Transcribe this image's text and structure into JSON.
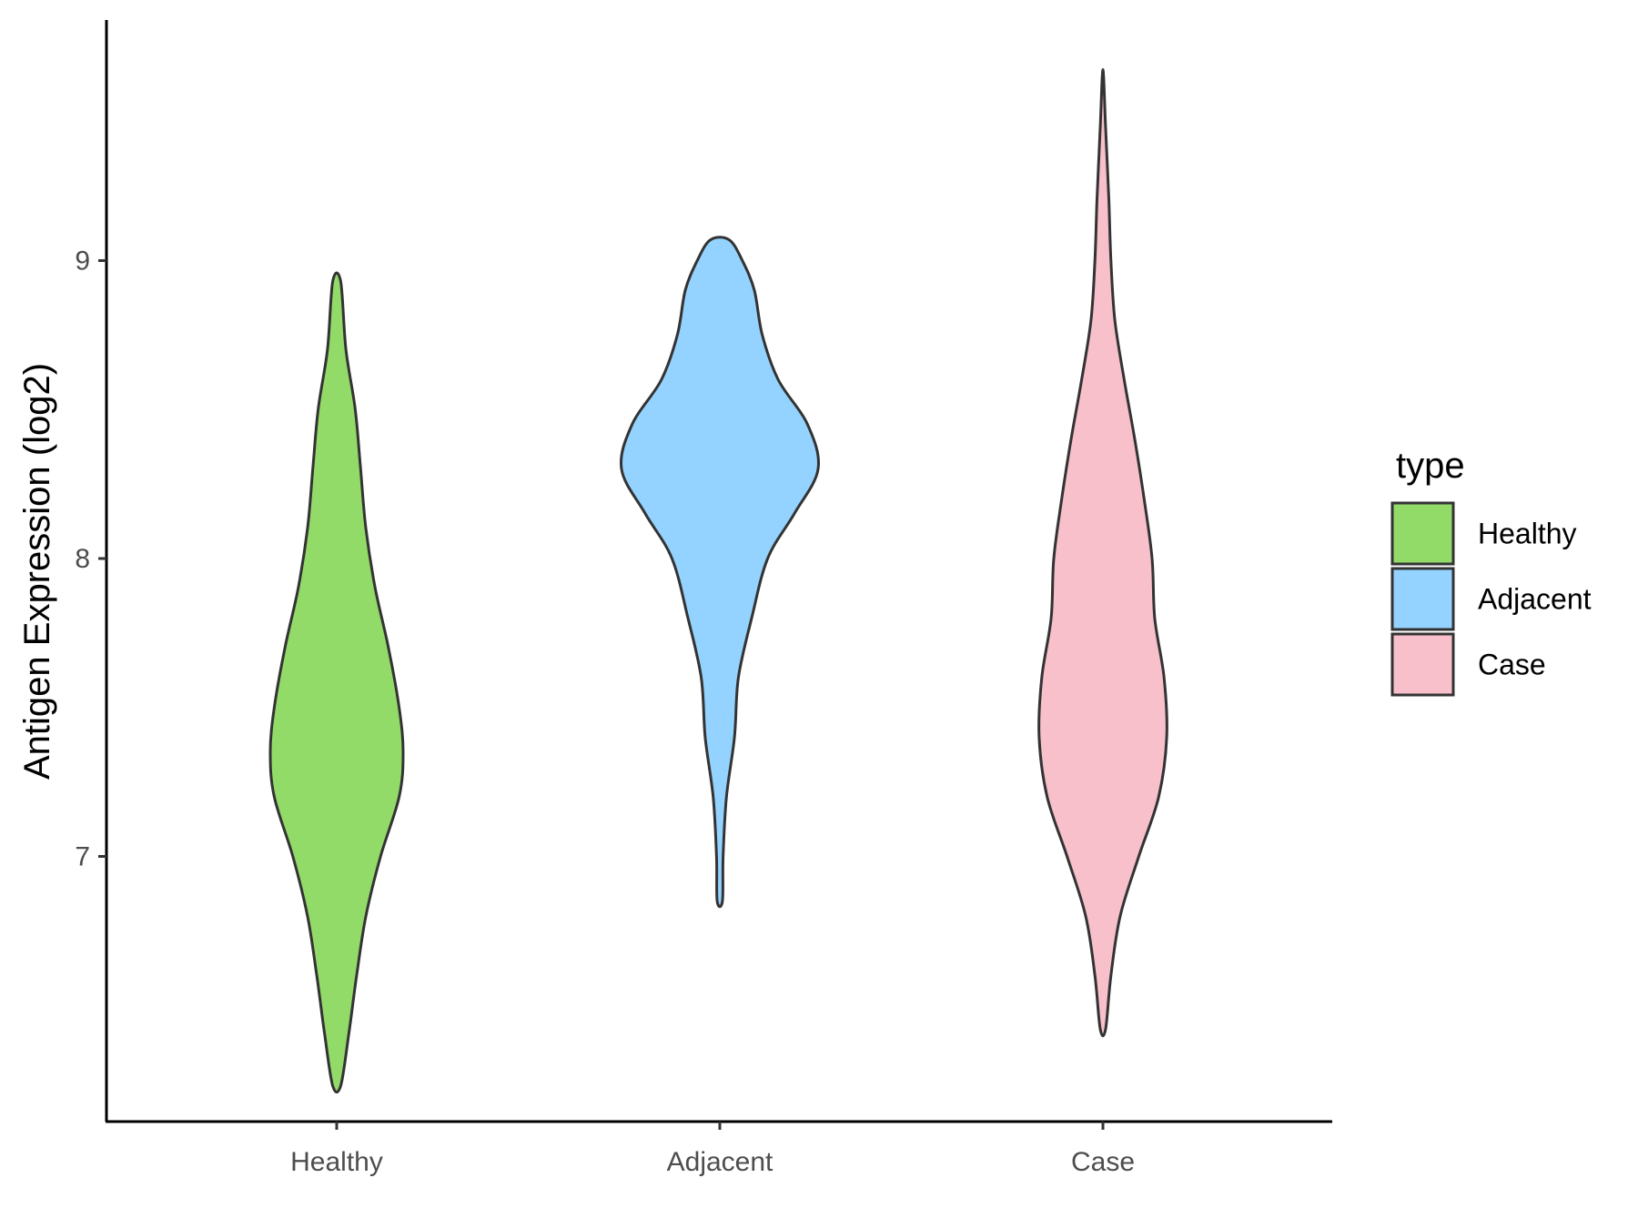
{
  "chart_data": {
    "type": "violin",
    "ylabel": "Antigen Expression (log2)",
    "xlabel": "",
    "ylim": [
      6.05,
      9.8
    ],
    "y_ticks": [
      7,
      8,
      9
    ],
    "y_tick_labels": [
      "7",
      "8",
      "9"
    ],
    "categories": [
      "Healthy",
      "Adjacent",
      "Case"
    ],
    "grid": false,
    "legend": {
      "title": "type",
      "position": "right",
      "entries": [
        "Healthy",
        "Adjacent",
        "Case"
      ]
    },
    "outline_color": "#333333",
    "series": [
      {
        "name": "Healthy",
        "color": "#93DB69",
        "min": 6.23,
        "max": 8.93,
        "density_profile": [
          [
            6.23,
            0.03
          ],
          [
            6.4,
            0.09
          ],
          [
            6.6,
            0.15
          ],
          [
            6.8,
            0.22
          ],
          [
            7.0,
            0.33
          ],
          [
            7.2,
            0.47
          ],
          [
            7.35,
            0.5
          ],
          [
            7.5,
            0.47
          ],
          [
            7.7,
            0.39
          ],
          [
            7.9,
            0.29
          ],
          [
            8.1,
            0.22
          ],
          [
            8.3,
            0.18
          ],
          [
            8.5,
            0.14
          ],
          [
            8.7,
            0.07
          ],
          [
            8.93,
            0.03
          ]
        ]
      },
      {
        "name": "Adjacent",
        "color": "#94D3FF",
        "min": 6.85,
        "max": 9.07,
        "density_profile": [
          [
            6.85,
            0.02
          ],
          [
            7.0,
            0.025
          ],
          [
            7.2,
            0.05
          ],
          [
            7.4,
            0.11
          ],
          [
            7.6,
            0.14
          ],
          [
            7.8,
            0.24
          ],
          [
            8.0,
            0.36
          ],
          [
            8.15,
            0.56
          ],
          [
            8.3,
            0.74
          ],
          [
            8.45,
            0.66
          ],
          [
            8.6,
            0.44
          ],
          [
            8.75,
            0.32
          ],
          [
            8.9,
            0.26
          ],
          [
            9.0,
            0.17
          ],
          [
            9.07,
            0.07
          ]
        ]
      },
      {
        "name": "Case",
        "color": "#F7C0CB",
        "min": 6.42,
        "max": 9.62,
        "density_profile": [
          [
            6.42,
            0.02
          ],
          [
            6.6,
            0.06
          ],
          [
            6.8,
            0.13
          ],
          [
            7.0,
            0.27
          ],
          [
            7.2,
            0.42
          ],
          [
            7.4,
            0.48
          ],
          [
            7.6,
            0.46
          ],
          [
            7.8,
            0.39
          ],
          [
            8.0,
            0.37
          ],
          [
            8.2,
            0.31
          ],
          [
            8.4,
            0.24
          ],
          [
            8.6,
            0.16
          ],
          [
            8.8,
            0.09
          ],
          [
            9.0,
            0.06
          ],
          [
            9.2,
            0.045
          ],
          [
            9.45,
            0.02
          ],
          [
            9.62,
            0.005
          ]
        ]
      }
    ]
  }
}
